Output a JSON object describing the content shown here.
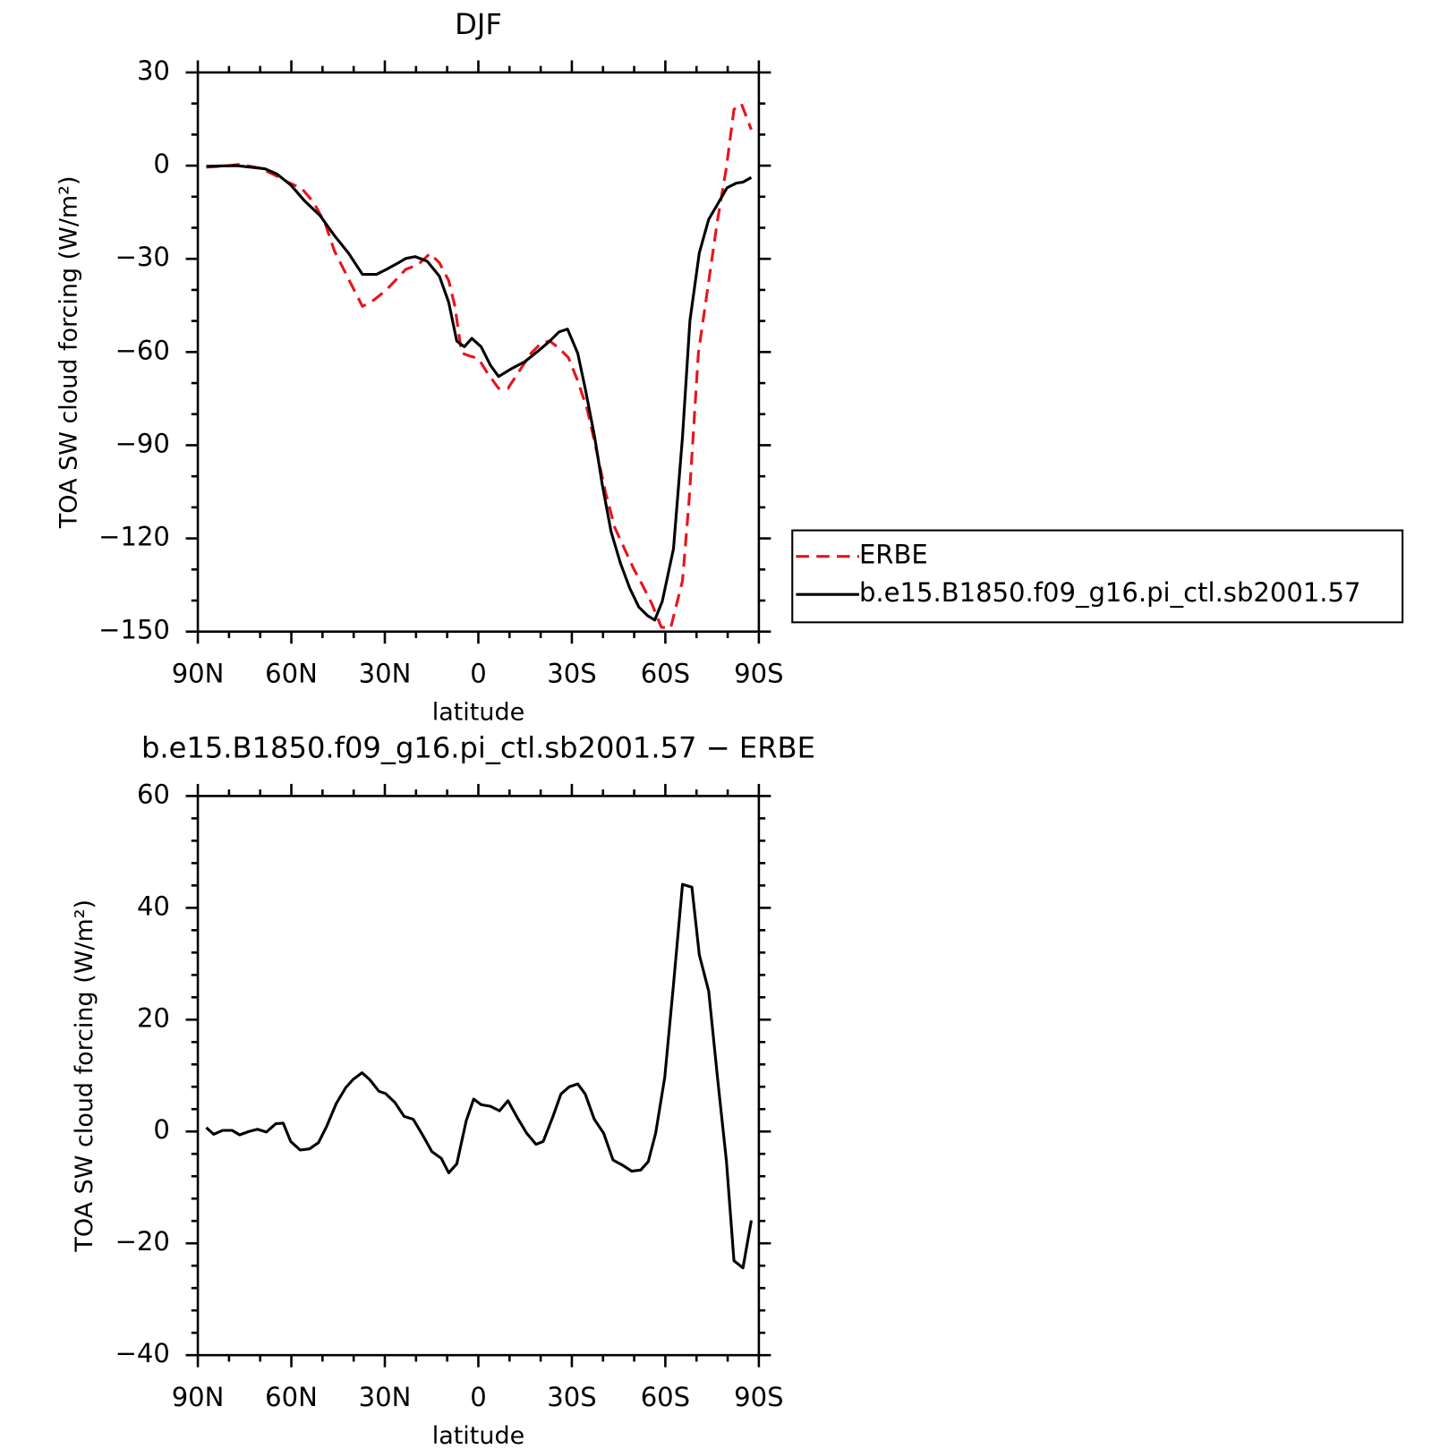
{
  "chart_data": [
    {
      "type": "line",
      "title": "DJF",
      "xlabel": "latitude",
      "ylabel": "TOA SW cloud forcing (W/m²)",
      "xlim": [
        90,
        -90
      ],
      "xticks": [
        {
          "value": 90,
          "label": "90N"
        },
        {
          "value": 60,
          "label": "60N"
        },
        {
          "value": 30,
          "label": "30N"
        },
        0,
        {
          "value": -30,
          "label": "30S"
        },
        {
          "value": -60,
          "label": "60S"
        },
        {
          "value": -90,
          "label": "90S"
        }
      ],
      "ylim": [
        -150,
        30
      ],
      "yticks": [
        {
          "value": -150,
          "label": "−150"
        },
        {
          "value": -120,
          "label": "−120"
        },
        {
          "value": -90,
          "label": "−90"
        },
        {
          "value": -60,
          "label": "−60"
        },
        {
          "value": -30,
          "label": "−30"
        },
        0,
        30
      ],
      "legend": "right",
      "series": [
        {
          "name": "ERBE",
          "color": "#e8141c",
          "dash": "dashed",
          "x": [
            87.3,
            82.0,
            76.6,
            70.0,
            64.6,
            61.1,
            56.6,
            52.8,
            49.2,
            46.2,
            41.7,
            37.2,
            34.2,
            29.7,
            26.1,
            23.3,
            19.4,
            15.5,
            12.5,
            9.5,
            7.5,
            5.4,
            3.0,
            0.0,
            -3.0,
            -6.5,
            -9.5,
            -13.4,
            -17.0,
            -20.0,
            -22.9,
            -25.9,
            -28.9,
            -31.9,
            -34.9,
            -37.9,
            -40.8,
            -43.8,
            -46.8,
            -49.8,
            -52.7,
            -55.7,
            -58.7,
            -61.7,
            -65.5,
            -67.6,
            -70.6,
            -73.6,
            -76.6,
            -79.6,
            -82.0,
            -84.4,
            -87.6
          ],
          "values": [
            -0.5,
            -0.2,
            0.4,
            -0.8,
            -3.4,
            -5.3,
            -7.4,
            -11.9,
            -18.5,
            -27.4,
            -36.4,
            -45.3,
            -43.8,
            -40.2,
            -36.4,
            -33.4,
            -31.9,
            -28.3,
            -31.3,
            -37.0,
            -45.3,
            -60.3,
            -61.2,
            -62.1,
            -66.9,
            -71.7,
            -71.7,
            -65.7,
            -60.3,
            -57.3,
            -56.4,
            -58.8,
            -61.8,
            -69.3,
            -78.3,
            -91.7,
            -105.2,
            -116.6,
            -123.1,
            -129.7,
            -135.1,
            -141.1,
            -148.6,
            -148.9,
            -133.6,
            -108.2,
            -60.3,
            -39.4,
            -18.5,
            -0.5,
            18.1,
            19.9,
            11.6
          ]
        },
        {
          "name": "b.e15.B1850.f09_g16.pi_ctl.sb2001.57",
          "color": "#000000",
          "dash": "solid",
          "x": [
            87.3,
            77.5,
            68.5,
            64.6,
            60.1,
            55.7,
            50.7,
            46.2,
            41.7,
            37.2,
            32.7,
            29.7,
            25.3,
            23.3,
            20.3,
            16.4,
            12.5,
            9.5,
            6.9,
            4.5,
            2.1,
            -0.9,
            -3.9,
            -6.5,
            -10.4,
            -14.9,
            -19.4,
            -22.9,
            -25.9,
            -28.6,
            -31.9,
            -34.3,
            -37.3,
            -39.7,
            -42.6,
            -45.6,
            -48.6,
            -51.5,
            -54.2,
            -56.6,
            -59.0,
            -62.6,
            -65.5,
            -67.9,
            -70.9,
            -73.9,
            -76.9,
            -79.8,
            -82.8,
            -84.9,
            -87.6
          ],
          "values": [
            -0.2,
            0,
            -1,
            -2.7,
            -6.3,
            -11.4,
            -16.2,
            -22.5,
            -28.1,
            -35.0,
            -35.0,
            -33.5,
            -31.1,
            -29.9,
            -29.3,
            -30.8,
            -35.6,
            -44.0,
            -56.5,
            -58.3,
            -55.6,
            -58.3,
            -64.3,
            -67.9,
            -65.5,
            -63.1,
            -59.5,
            -56.5,
            -53.5,
            -52.6,
            -60.4,
            -71.8,
            -87.3,
            -102.3,
            -117.8,
            -128.0,
            -136.1,
            -142.1,
            -144.8,
            -146.3,
            -140.3,
            -123.3,
            -87.3,
            -49.9,
            -28.1,
            -17.3,
            -12.2,
            -7.1,
            -5.6,
            -5.3,
            -3.8
          ]
        }
      ]
    },
    {
      "type": "line",
      "title": "b.e15.B1850.f09_g16.pi_ctl.sb2001.57 − ERBE",
      "xlabel": "latitude",
      "ylabel": "TOA SW cloud forcing (W/m²)",
      "xlim": [
        90,
        -90
      ],
      "xticks": [
        {
          "value": 90,
          "label": "90N"
        },
        {
          "value": 60,
          "label": "60N"
        },
        {
          "value": 30,
          "label": "30N"
        },
        0,
        {
          "value": -30,
          "label": "30S"
        },
        {
          "value": -60,
          "label": "60S"
        },
        {
          "value": -90,
          "label": "90S"
        }
      ],
      "ylim": [
        -40,
        60
      ],
      "yticks": [
        {
          "value": -40,
          "label": "−40"
        },
        {
          "value": -20,
          "label": "−20"
        },
        0,
        20,
        40,
        60
      ],
      "series": [
        {
          "color": "#000000",
          "dash": "solid",
          "x": [
            87.3,
            84.9,
            82.0,
            79.0,
            76.6,
            73.6,
            70.9,
            68.0,
            65.0,
            62.6,
            60.2,
            57.2,
            54.2,
            51.3,
            48.6,
            45.6,
            42.6,
            40.2,
            37.3,
            34.9,
            31.9,
            29.8,
            26.8,
            23.8,
            20.9,
            17.9,
            14.9,
            11.9,
            9.5,
            6.9,
            3.9,
            1.5,
            -0.9,
            -3.9,
            -6.8,
            -9.5,
            -12.5,
            -15.5,
            -18.5,
            -20.8,
            -23.8,
            -26.5,
            -29.2,
            -31.9,
            -34.3,
            -37.2,
            -40.2,
            -43.2,
            -46.2,
            -49.2,
            -52.1,
            -54.5,
            -56.9,
            -59.8,
            -62.6,
            -65.5,
            -68.5,
            -70.9,
            -73.9,
            -76.9,
            -79.6,
            -82.0,
            -84.9,
            -87.6
          ],
          "values": [
            0.7,
            -0.5,
            0.2,
            0.2,
            -0.6,
            0.0,
            0.4,
            -0.1,
            1.4,
            1.5,
            -1.8,
            -3.3,
            -3.1,
            -2.0,
            1.0,
            5.0,
            7.8,
            9.3,
            10.5,
            9.3,
            7.2,
            6.8,
            5.2,
            2.7,
            2.2,
            -0.6,
            -3.6,
            -4.8,
            -7.4,
            -5.8,
            1.9,
            5.8,
            4.8,
            4.5,
            3.7,
            5.5,
            2.5,
            -0.3,
            -2.3,
            -1.8,
            2.5,
            6.7,
            8.0,
            8.5,
            6.7,
            2.2,
            -0.3,
            -5.1,
            -6.0,
            -7.1,
            -6.9,
            -5.4,
            -0.3,
            9.7,
            26.3,
            44.2,
            43.7,
            31.6,
            25.1,
            8.8,
            -5.3,
            -23.1,
            -24.4,
            -15.9
          ]
        }
      ]
    }
  ]
}
